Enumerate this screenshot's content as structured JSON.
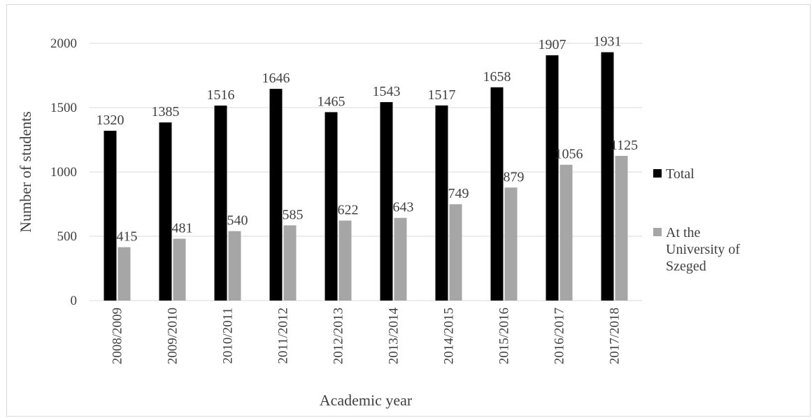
{
  "chart_data": {
    "type": "bar",
    "title": "",
    "xlabel": "Academic year",
    "ylabel": "Number of students",
    "ylim": [
      0,
      2000
    ],
    "yticks": [
      0,
      500,
      1000,
      1500,
      2000
    ],
    "grid": true,
    "legend_position": "right",
    "categories": [
      "2008/2009",
      "2009/2010",
      "2010/2011",
      "2011/2012",
      "2012/2013",
      "2013/2014",
      "2014/2015",
      "2015/2016",
      "2016/2017",
      "2017/2018"
    ],
    "series": [
      {
        "name": "Total",
        "color": "#000000",
        "values": [
          1320,
          1385,
          1516,
          1646,
          1465,
          1543,
          1517,
          1658,
          1907,
          1931
        ]
      },
      {
        "name": "At the University of Szeged",
        "legend_lines": [
          "At the",
          "University of",
          "Szeged"
        ],
        "color": "#a6a6a6",
        "values": [
          415,
          481,
          540,
          585,
          622,
          643,
          749,
          879,
          1056,
          1125
        ]
      }
    ]
  }
}
